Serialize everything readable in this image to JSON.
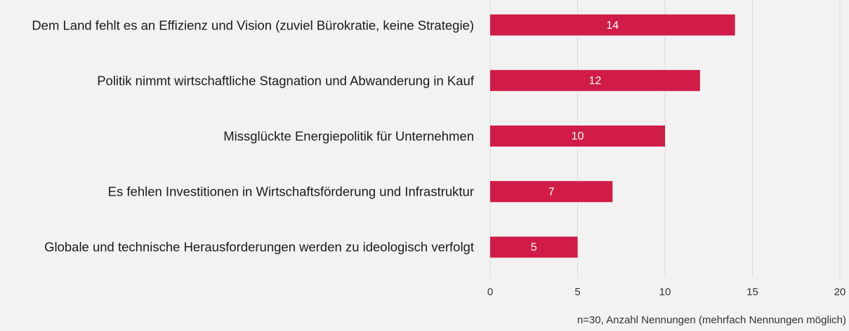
{
  "chart_data": {
    "type": "barh",
    "categories": [
      "Dem Land fehlt es an Effizienz und Vision (zuviel Bürokratie, keine Strategie)",
      "Politik nimmt wirtschaftliche Stagnation und Abwanderung in Kauf",
      "Missglückte Energiepolitik für Unternehmen",
      "Es fehlen Investitionen in Wirtschaftsförderung und Infrastruktur",
      "Globale und technische Herausforderungen werden zu ideologisch verfolgt"
    ],
    "values": [
      14,
      12,
      10,
      7,
      5
    ],
    "color": "#d01c47",
    "xlim": [
      0,
      20
    ],
    "xticks": [
      0,
      5,
      10,
      15,
      20
    ],
    "grid": true,
    "note": "n=30, Anzahl Nennungen (mehrfach Nennungen möglich)"
  }
}
